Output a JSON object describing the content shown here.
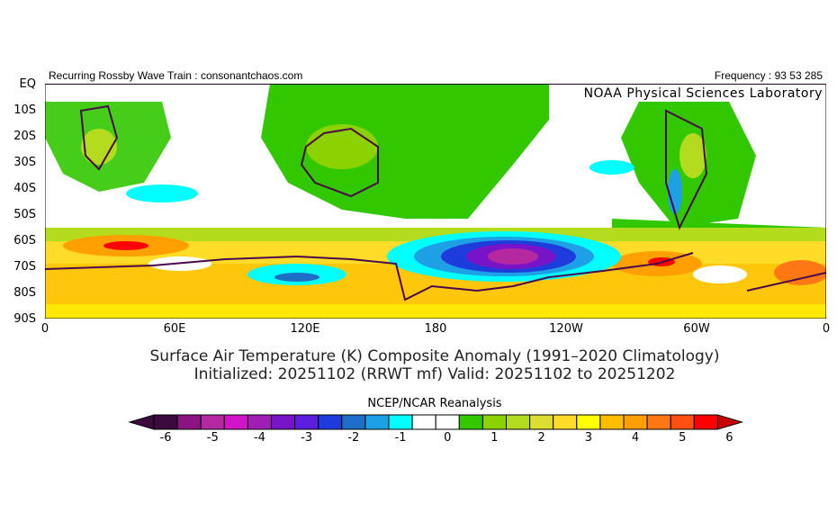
{
  "header": {
    "left": "Recurring Rossby Wave Train : consonantchaos.com",
    "right": "Frequency : 93 53 285",
    "lab": "NOAA Physical Sciences Laboratory"
  },
  "map": {
    "lat_labels": [
      "EQ",
      "10S",
      "20S",
      "30S",
      "40S",
      "50S",
      "60S",
      "70S",
      "80S",
      "90S"
    ],
    "lon_labels": [
      "0",
      "60E",
      "120E",
      "180",
      "120W",
      "60W",
      "0"
    ],
    "variable": "Surface Air Temperature anomaly (K)"
  },
  "title": {
    "line1": "Surface Air Temperature (K) Composite Anomaly (1991–2020 Climatology)",
    "line2": "Initialized: 20251102 (RRWT mf) Valid: 20251102 to 20251202"
  },
  "colorbar": {
    "title": "NCEP/NCAR Reanalysis",
    "ticks": [
      "-6",
      "-5",
      "-4",
      "-3",
      "-2",
      "-1",
      "0",
      "1",
      "2",
      "3",
      "4",
      "5",
      "6"
    ],
    "colors": [
      "#3c0a3c",
      "#8c1482",
      "#b428a0",
      "#d214c8",
      "#a01eb4",
      "#7814c8",
      "#5a1edc",
      "#1e3cdc",
      "#1e6ec8",
      "#1ea0e6",
      "#00ffff",
      "#ffffff",
      "#ffffff",
      "#32c800",
      "#8cd200",
      "#b4dc1e",
      "#dcdc32",
      "#ffdc28",
      "#ffff00",
      "#ffbe00",
      "#ffa000",
      "#ff7814",
      "#ff5014",
      "#ff0000"
    ],
    "under_color": "#3c0a3c",
    "over_color": "#c80000"
  }
}
